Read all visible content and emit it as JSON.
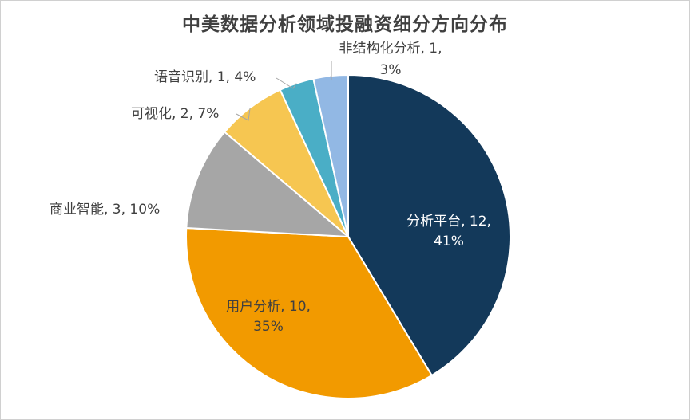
{
  "chart_data": {
    "type": "pie",
    "title": "中美数据分析领域投融资细分方向分布",
    "slices": [
      {
        "name": "分析平台",
        "value": 12,
        "percent": "41%",
        "color": "#13395a"
      },
      {
        "name": "用户分析",
        "value": 10,
        "percent": "35%",
        "color": "#f29a00"
      },
      {
        "name": "商业智能",
        "value": 3,
        "percent": "10%",
        "color": "#a6a6a6"
      },
      {
        "name": "可视化",
        "value": 2,
        "percent": "7%",
        "color": "#f6c651"
      },
      {
        "name": "语音识别",
        "value": 1,
        "percent": "4%",
        "color": "#4aaec6"
      },
      {
        "name": "非结构化分析",
        "value": 1,
        "percent": "3%",
        "color": "#92b8e4"
      }
    ],
    "labels": [
      "分析平台, 12,",
      "41%",
      "用户分析, 10,",
      "35%",
      "商业智能, 3, 10%",
      "可视化, 2, 7%",
      "语音识别, 1, 4%",
      "非结构化分析, 1,",
      "3%"
    ]
  }
}
